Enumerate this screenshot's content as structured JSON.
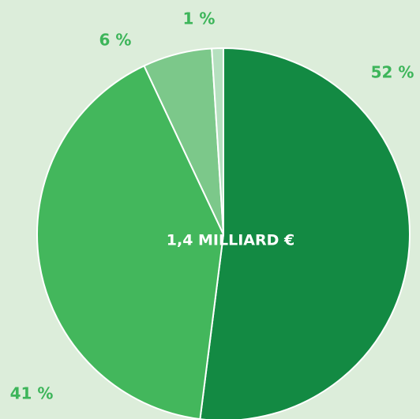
{
  "chart_data": {
    "type": "pie",
    "annotation": "1,4 MILLIARD €",
    "values": [
      52,
      41,
      6,
      1
    ],
    "value_labels": [
      "52 %",
      "41 %",
      "6 %",
      "1 %"
    ],
    "colors": [
      "#138a43",
      "#43b75c",
      "#7cc88a",
      "#b5e0bf"
    ]
  }
}
